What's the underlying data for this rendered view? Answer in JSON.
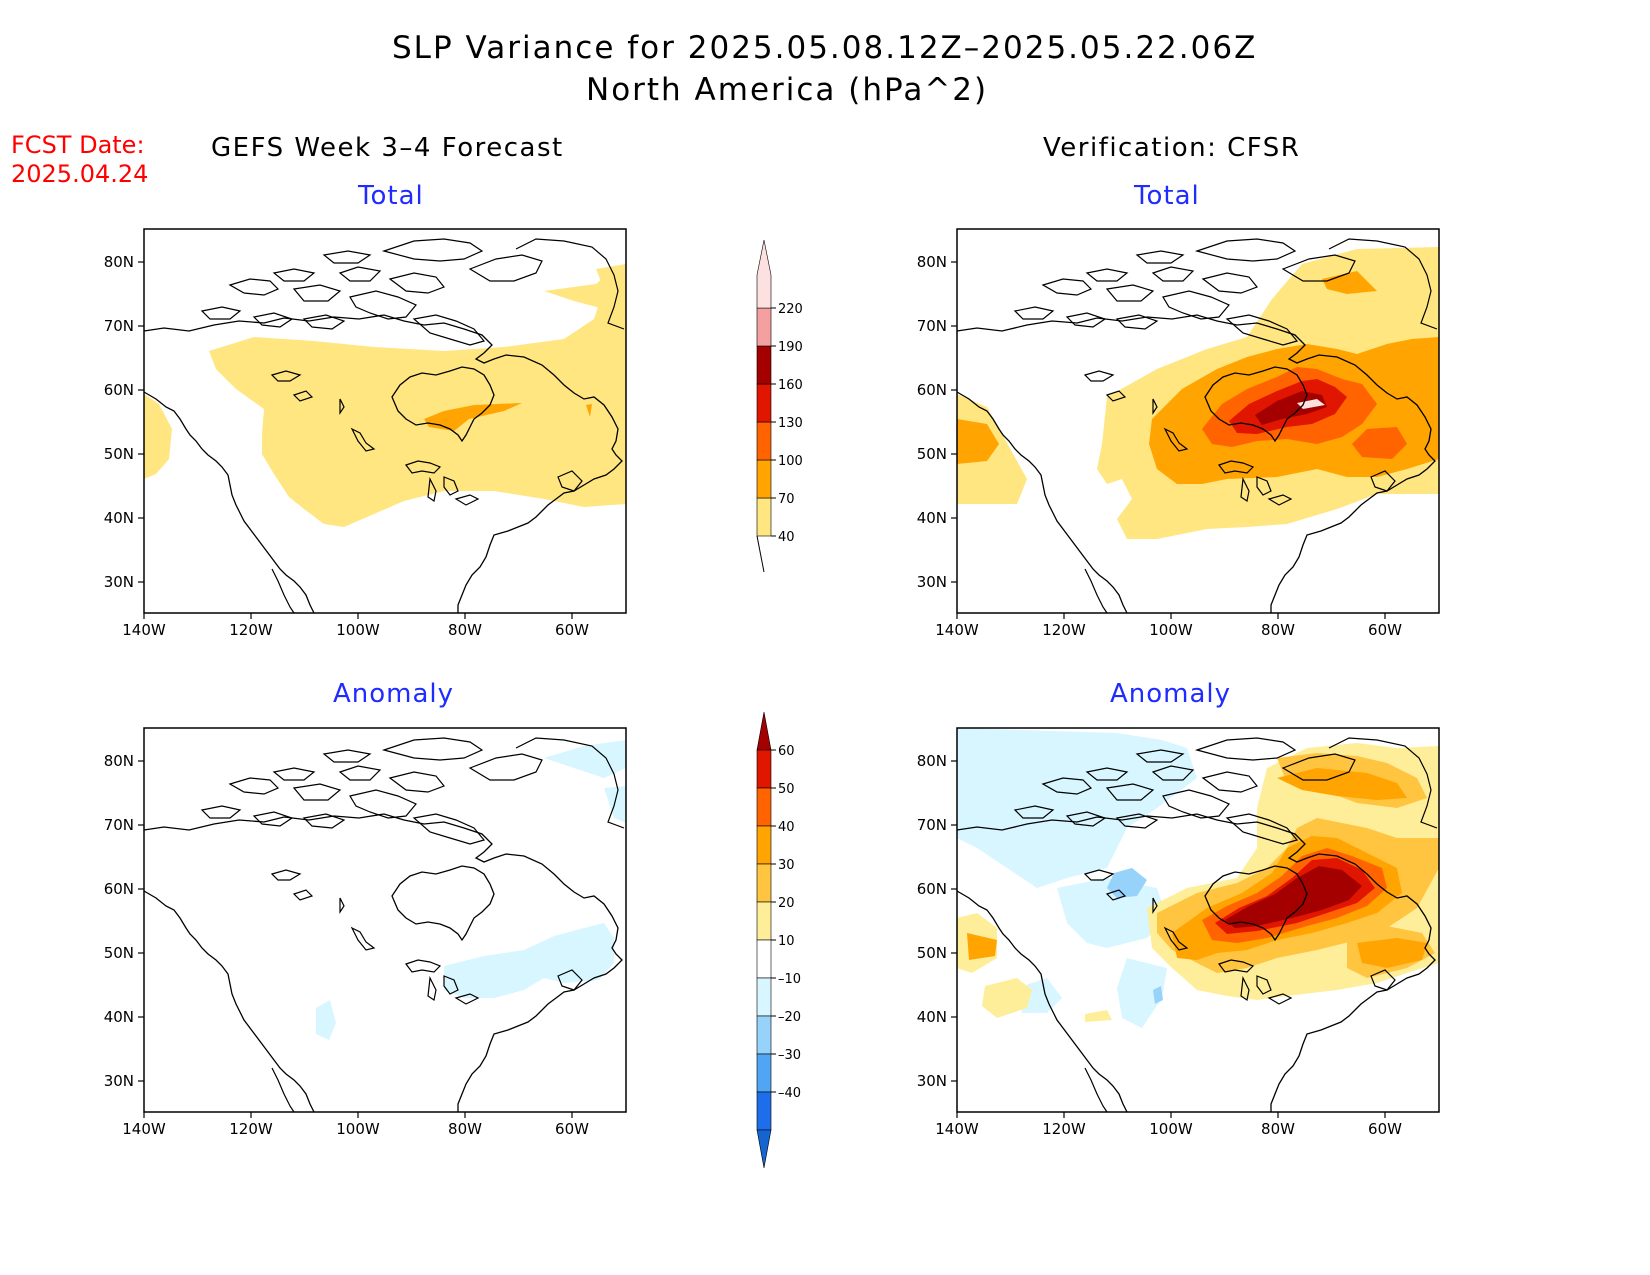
{
  "title": {
    "line1": "SLP Variance for 2025.05.08.12Z–2025.05.22.06Z",
    "line2": "North America (hPa^2)"
  },
  "fcst_date": {
    "label": "FCST Date:",
    "value": "2025.04.24"
  },
  "columns": {
    "left": "GEFS Week 3–4 Forecast",
    "right": "Verification: CFSR"
  },
  "panels": {
    "top_left": "Total",
    "top_right": "Total",
    "bottom_left": "Anomaly",
    "bottom_right": "Anomaly"
  },
  "axes": {
    "lat_labels": [
      "80N",
      "70N",
      "60N",
      "50N",
      "40N",
      "30N"
    ],
    "lon_labels": [
      "140W",
      "120W",
      "100W",
      "80W",
      "60W"
    ]
  },
  "colorbars": {
    "total": {
      "levels": [
        "40",
        "70",
        "100",
        "130",
        "160",
        "190",
        "220"
      ],
      "colors": [
        "#ffe680",
        "#ffa400",
        "#ff6400",
        "#e11600",
        "#a50000",
        "#f4a0a0",
        "#fde0e0"
      ]
    },
    "anomaly": {
      "levels": [
        "60",
        "50",
        "40",
        "30",
        "20",
        "10",
        "–10",
        "–20",
        "–30",
        "–40"
      ],
      "colors": [
        "#a50000",
        "#e11600",
        "#ff6400",
        "#ffa400",
        "#ffc440",
        "#ffee99",
        "#ffffff",
        "#d8f6ff",
        "#96d2fa",
        "#50a5f5",
        "#1e6eeb",
        "#1464d2"
      ]
    }
  },
  "colors": {
    "title_text": "#000000",
    "fcst_text": "#ff0000",
    "panel_title_text": "#1f2bff"
  }
}
